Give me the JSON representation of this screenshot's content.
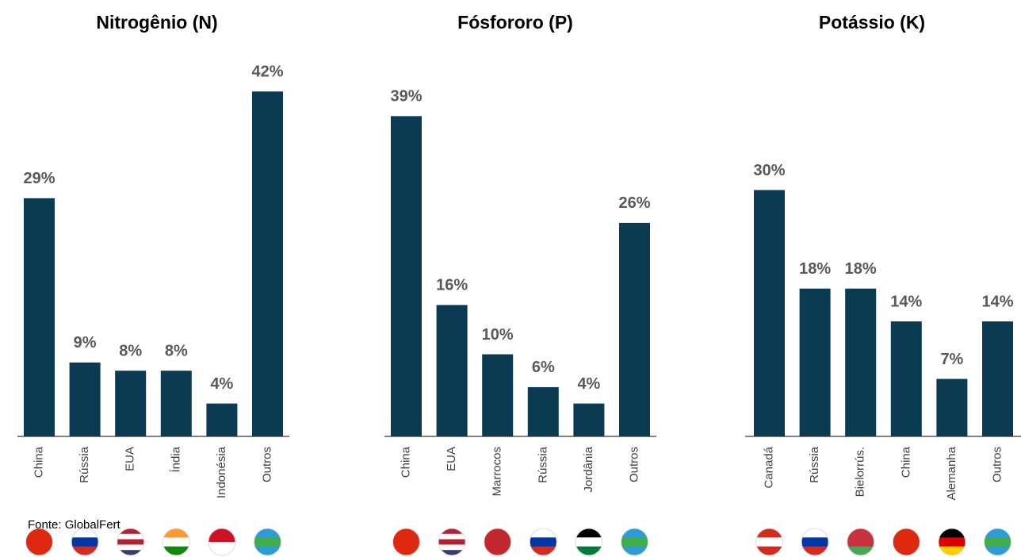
{
  "chart_data": [
    {
      "type": "bar",
      "title": "Nitrogênio (N)",
      "color": "#0b3a53",
      "categories": [
        "China",
        "Rússia",
        "EUA",
        "Índia",
        "Indonésia",
        "Outros"
      ],
      "values": [
        29,
        9,
        8,
        8,
        4,
        42
      ],
      "value_labels": [
        "29%",
        "9%",
        "8%",
        "8%",
        "4%",
        "42%"
      ]
    },
    {
      "type": "bar",
      "title": "Fósfororo (P)",
      "color": "#0b3a53",
      "categories": [
        "China",
        "EUA",
        "Marrocos",
        "Rússia",
        "Jordânia",
        "Outros"
      ],
      "values": [
        39,
        16,
        10,
        6,
        4,
        26
      ],
      "value_labels": [
        "39%",
        "16%",
        "10%",
        "6%",
        "4%",
        "26%"
      ]
    },
    {
      "type": "bar",
      "title": "Potássio (K)",
      "color": "#0b3a53",
      "categories": [
        "Canadá",
        "Rússia",
        "Bielorrús.",
        "China",
        "Alemanha",
        "Outros"
      ],
      "values": [
        30,
        18,
        18,
        14,
        7,
        14
      ],
      "value_labels": [
        "30%",
        "18%",
        "18%",
        "14%",
        "7%",
        "14%"
      ]
    }
  ],
  "source": "Fonte: GlobalFert"
}
